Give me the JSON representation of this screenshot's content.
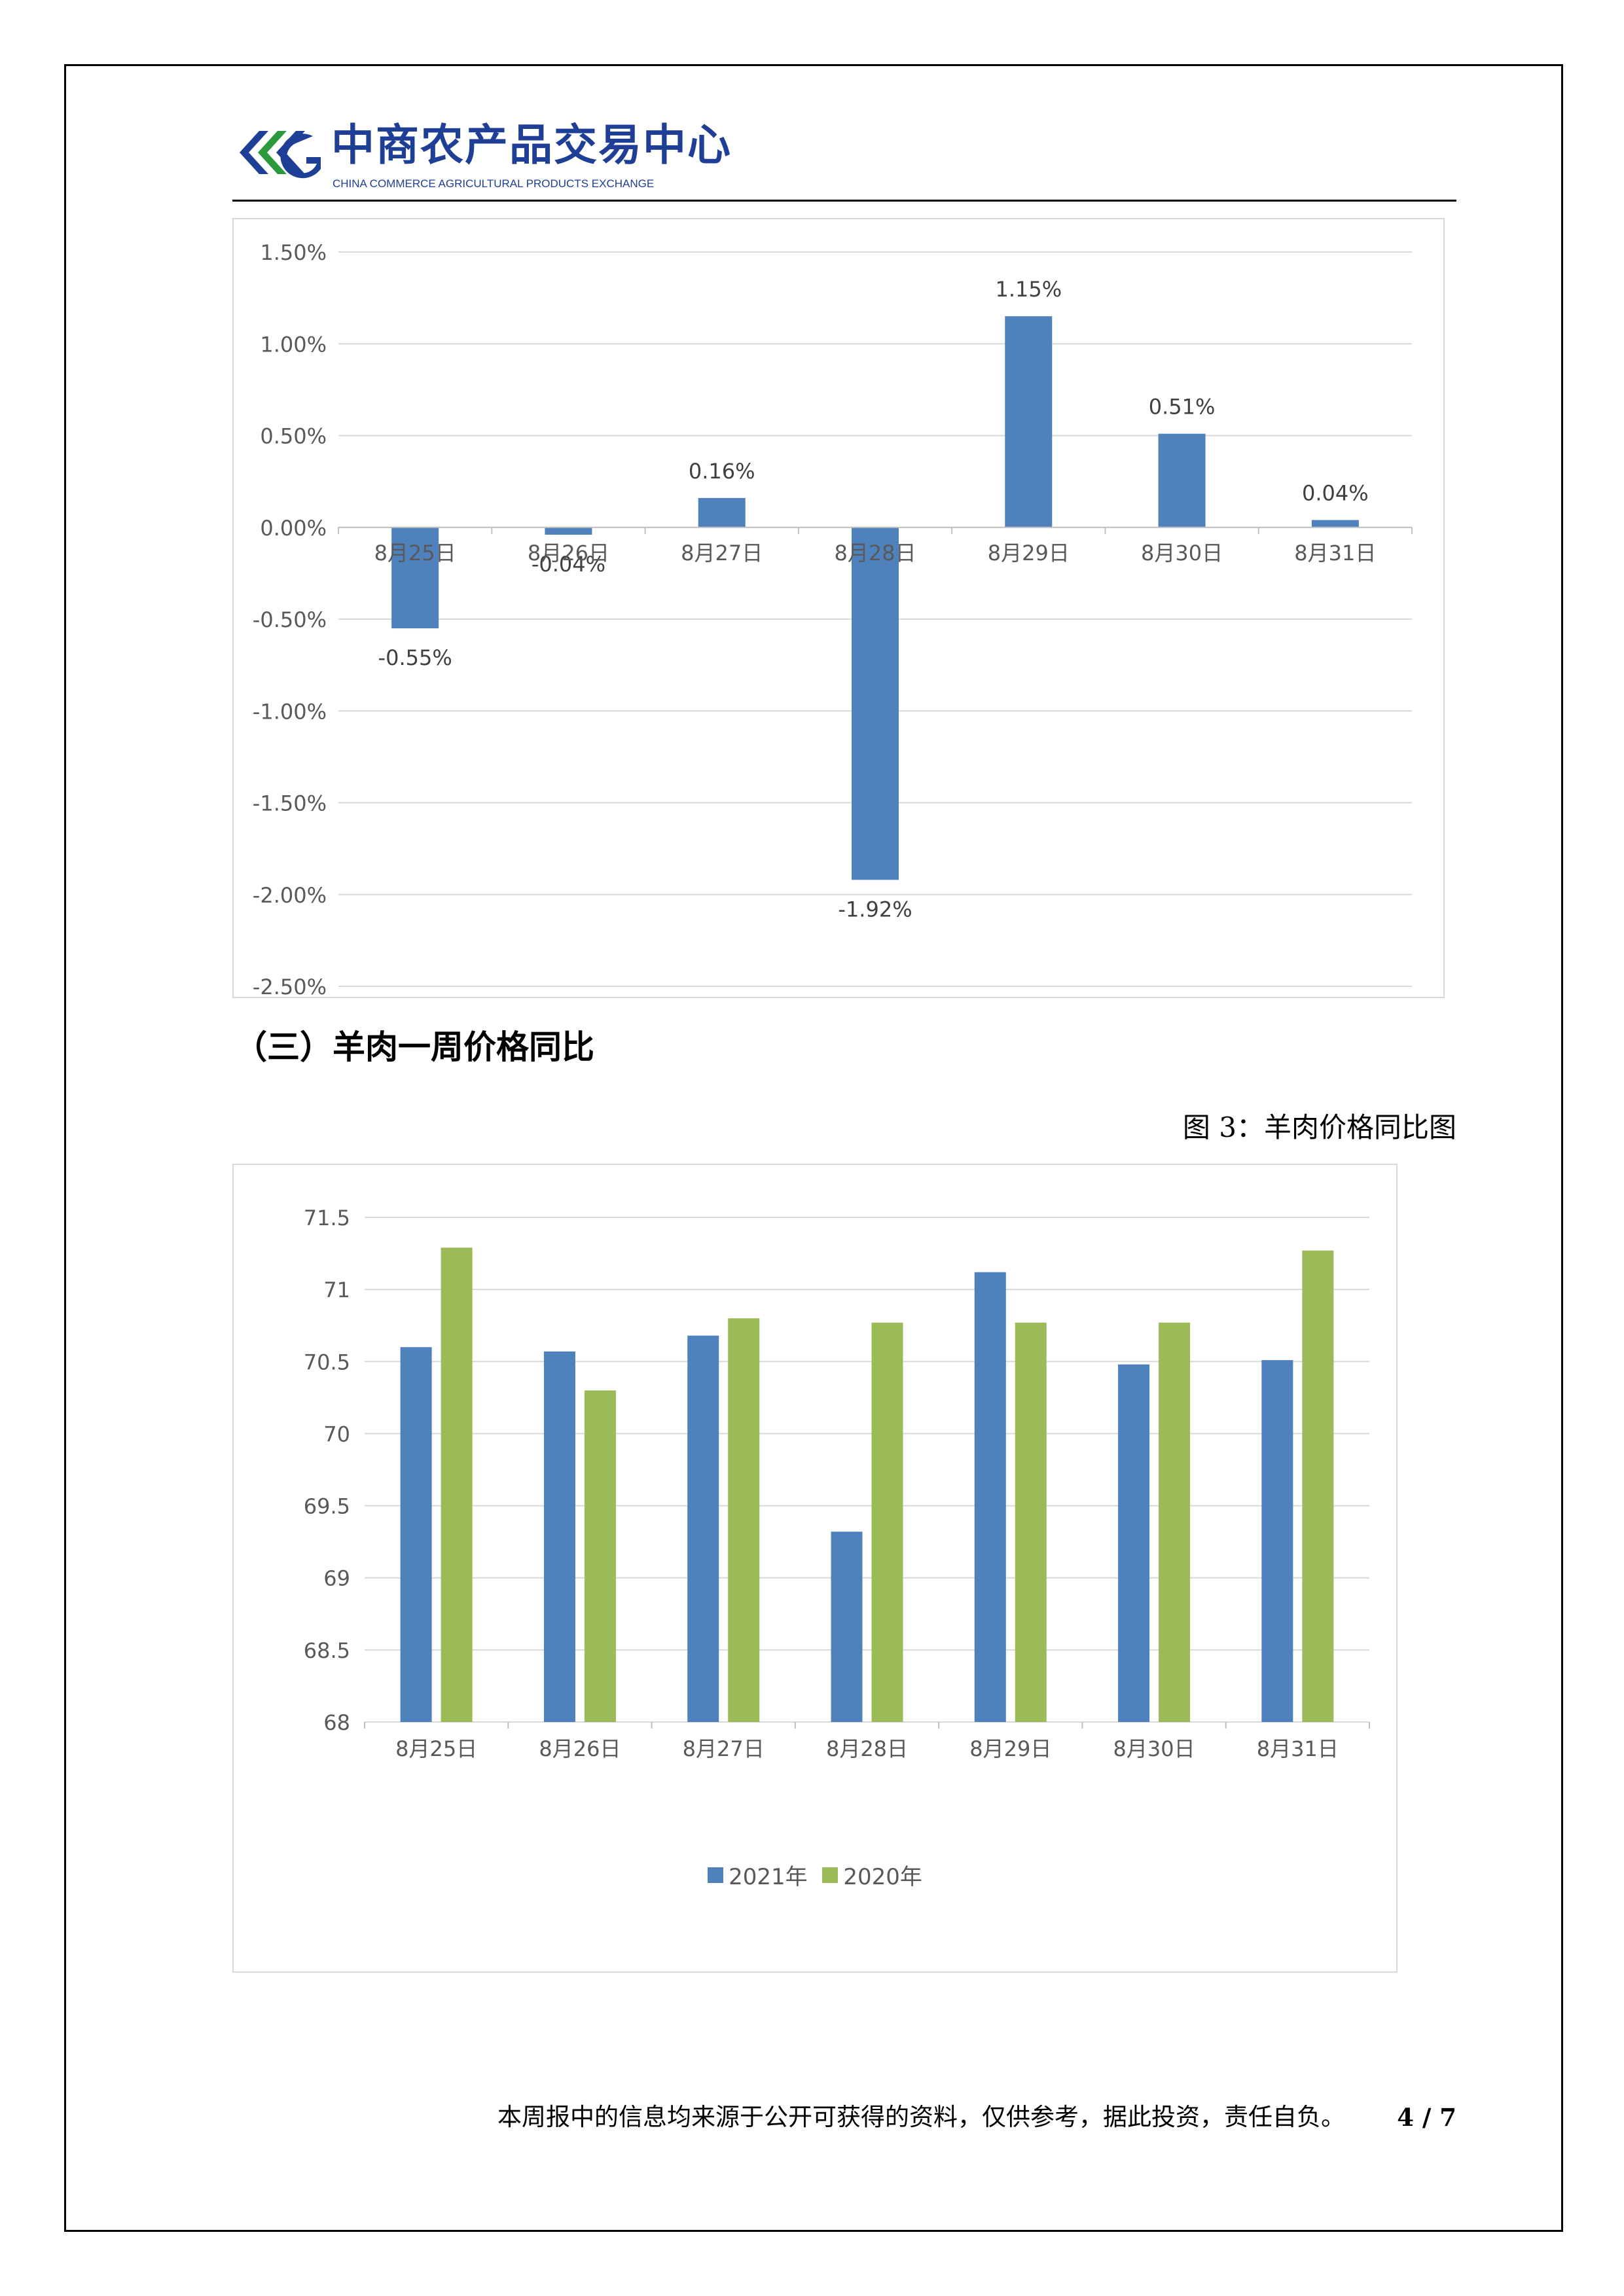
{
  "header": {
    "logo_cn": "中商农产品交易中心",
    "logo_en": "CHINA COMMERCE AGRICULTURAL PRODUCTS EXCHANGE",
    "logo_colors": {
      "blue": "#1f3f97",
      "green": "#2a9a3c"
    }
  },
  "chart_data": [
    {
      "type": "bar",
      "categories": [
        "8月25日",
        "8月26日",
        "8月27日",
        "8月28日",
        "8月29日",
        "8月30日",
        "8月31日"
      ],
      "values": [
        -0.55,
        -0.04,
        0.16,
        -1.92,
        1.15,
        0.51,
        0.04
      ],
      "data_labels": [
        "-0.55%",
        "-0.04%",
        "0.16%",
        "-1.92%",
        "1.15%",
        "0.51%",
        "0.04%"
      ],
      "y_ticks": [
        "1.50%",
        "1.00%",
        "0.50%",
        "0.00%",
        "-0.50%",
        "-1.00%",
        "-1.50%",
        "-2.00%",
        "-2.50%"
      ],
      "ylim": [
        -2.5,
        1.5
      ],
      "unit": "%",
      "grid": true,
      "color": "#4f81bd"
    },
    {
      "type": "bar",
      "categories": [
        "8月25日",
        "8月26日",
        "8月27日",
        "8月28日",
        "8月29日",
        "8月30日",
        "8月31日"
      ],
      "series": [
        {
          "name": "2021年",
          "values": [
            70.6,
            70.57,
            70.68,
            69.32,
            71.12,
            70.48,
            70.51
          ],
          "color": "#4f81bd"
        },
        {
          "name": "2020年",
          "values": [
            71.29,
            70.3,
            70.8,
            70.77,
            70.77,
            70.77,
            71.27
          ],
          "color": "#9bbb59"
        }
      ],
      "y_ticks": [
        "71.5",
        "71",
        "70.5",
        "70",
        "69.5",
        "69",
        "68.5",
        "68"
      ],
      "ylim": [
        68,
        71.5
      ],
      "grid": true,
      "legend": "bottom"
    }
  ],
  "section": {
    "heading": "（三）羊肉一周价格同比"
  },
  "figure": {
    "caption": "图 3：羊肉价格同比图"
  },
  "footer": {
    "note": "本周报中的信息均来源于公开可获得的资料，仅供参考，据此投资，责任自负。",
    "page": "4 / 7"
  }
}
